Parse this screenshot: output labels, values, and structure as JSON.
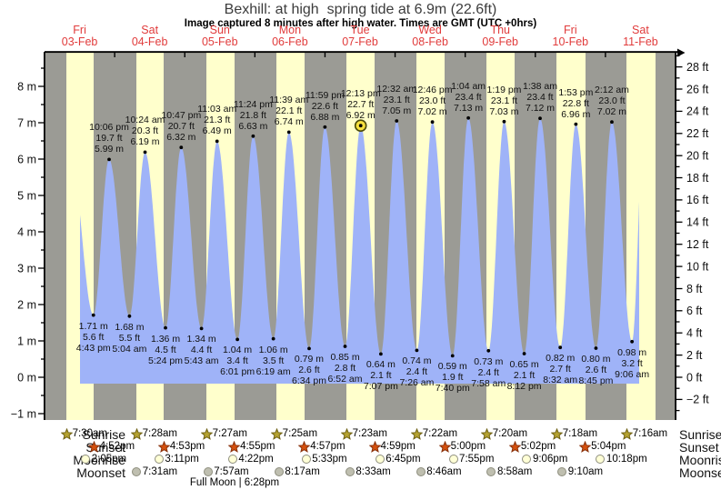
{
  "header": {
    "title": "Bexhill: at high  spring tide at 6.9m (22.6ft)",
    "subtitle": "Image captured 8 minutes after high water. Times are GMT (UTC +0hrs)"
  },
  "colors": {
    "night_band": "#9b9b95",
    "day_band": "#ffffcc",
    "tide_fill": "#9fb3f8",
    "day_label_red": "#e13b3b",
    "marker_yellow": "#f7e13e",
    "sunrise_star": "#b5a230",
    "sunset_star": "#d4500e",
    "moonrise_circle": "#ffffd6",
    "moonset_circle": "#bfbfb0"
  },
  "chart_data": {
    "type": "area",
    "title": "Bexhill: at high  spring tide at 6.9m (22.6ft)",
    "ylabel_left": "m",
    "ylabel_right": "ft",
    "y_left_ticks_m": [
      8,
      7,
      6,
      5,
      4,
      3,
      2,
      1,
      0,
      -1
    ],
    "y_right_ticks_ft": [
      28,
      26,
      24,
      22,
      20,
      18,
      16,
      14,
      12,
      10,
      8,
      6,
      4,
      2,
      0,
      -2
    ],
    "x_days": [
      {
        "name": "Fri",
        "date": "03-Feb"
      },
      {
        "name": "Sat",
        "date": "04-Feb"
      },
      {
        "name": "Sun",
        "date": "05-Feb"
      },
      {
        "name": "Mon",
        "date": "06-Feb"
      },
      {
        "name": "Tue",
        "date": "07-Feb"
      },
      {
        "name": "Wed",
        "date": "08-Feb"
      },
      {
        "name": "Thu",
        "date": "09-Feb"
      },
      {
        "name": "Fri",
        "date": "10-Feb"
      },
      {
        "name": "Sat",
        "date": "11-Feb"
      }
    ],
    "events": [
      {
        "kind": "low",
        "day": 0,
        "hour": 16.72,
        "time": "4:43 pm",
        "m": "1.71",
        "ft": "5.6"
      },
      {
        "kind": "high",
        "day": 0,
        "hour": 22.1,
        "time": "10:06 pm",
        "m": "5.99",
        "ft": "19.7"
      },
      {
        "kind": "low",
        "day": 1,
        "hour": 5.07,
        "time": "5:04 am",
        "m": "1.68",
        "ft": "5.5"
      },
      {
        "kind": "high",
        "day": 1,
        "hour": 10.4,
        "time": "10:24 am",
        "m": "6.19",
        "ft": "20.3"
      },
      {
        "kind": "low",
        "day": 1,
        "hour": 17.4,
        "time": "5:24 pm",
        "m": "1.36",
        "ft": "4.5"
      },
      {
        "kind": "high",
        "day": 1,
        "hour": 22.78,
        "time": "10:47 pm",
        "m": "6.32",
        "ft": "20.7"
      },
      {
        "kind": "low",
        "day": 2,
        "hour": 5.72,
        "time": "5:43 am",
        "m": "1.34",
        "ft": "4.4"
      },
      {
        "kind": "high",
        "day": 2,
        "hour": 11.05,
        "time": "11:03 am",
        "m": "6.49",
        "ft": "21.3"
      },
      {
        "kind": "low",
        "day": 2,
        "hour": 18.02,
        "time": "6:01 pm",
        "m": "1.04",
        "ft": "3.4"
      },
      {
        "kind": "high",
        "day": 2,
        "hour": 23.4,
        "time": "11:24 pm",
        "m": "6.63",
        "ft": "21.8"
      },
      {
        "kind": "low",
        "day": 3,
        "hour": 6.32,
        "time": "6:19 am",
        "m": "1.06",
        "ft": "3.5"
      },
      {
        "kind": "high",
        "day": 3,
        "hour": 11.65,
        "time": "11:39 am",
        "m": "6.74",
        "ft": "22.1"
      },
      {
        "kind": "low",
        "day": 3,
        "hour": 18.57,
        "time": "6:34 pm",
        "m": "0.79",
        "ft": "2.6"
      },
      {
        "kind": "high",
        "day": 3,
        "hour": 23.98,
        "time": "11:59 pm",
        "m": "6.88",
        "ft": "22.6"
      },
      {
        "kind": "low",
        "day": 4,
        "hour": 6.87,
        "time": "6:52 am",
        "m": "0.85",
        "ft": "2.8"
      },
      {
        "kind": "high",
        "day": 4,
        "hour": 12.22,
        "time": "12:13 pm",
        "m": "6.92",
        "ft": "22.7",
        "current": true
      },
      {
        "kind": "low",
        "day": 4,
        "hour": 19.12,
        "time": "7:07 pm",
        "m": "0.64",
        "ft": "2.1"
      },
      {
        "kind": "high",
        "day": 5,
        "hour": 0.53,
        "time": "12:32 am",
        "m": "7.05",
        "ft": "23.1"
      },
      {
        "kind": "low",
        "day": 5,
        "hour": 7.43,
        "time": "7:26 am",
        "m": "0.74",
        "ft": "2.4"
      },
      {
        "kind": "high",
        "day": 5,
        "hour": 12.77,
        "time": "12:46 pm",
        "m": "7.02",
        "ft": "23.0"
      },
      {
        "kind": "low",
        "day": 5,
        "hour": 19.67,
        "time": "7:40 pm",
        "m": "0.59",
        "ft": "1.9"
      },
      {
        "kind": "high",
        "day": 6,
        "hour": 1.07,
        "time": "1:04 am",
        "m": "7.13",
        "ft": "23.4"
      },
      {
        "kind": "low",
        "day": 6,
        "hour": 7.97,
        "time": "7:58 am",
        "m": "0.73",
        "ft": "2.4"
      },
      {
        "kind": "high",
        "day": 6,
        "hour": 13.32,
        "time": "1:19 pm",
        "m": "7.03",
        "ft": "23.1"
      },
      {
        "kind": "low",
        "day": 6,
        "hour": 20.2,
        "time": "8:12 pm",
        "m": "0.65",
        "ft": "2.1"
      },
      {
        "kind": "high",
        "day": 7,
        "hour": 1.63,
        "time": "1:38 am",
        "m": "7.12",
        "ft": "23.4"
      },
      {
        "kind": "low",
        "day": 7,
        "hour": 8.53,
        "time": "8:32 am",
        "m": "0.82",
        "ft": "2.7"
      },
      {
        "kind": "high",
        "day": 7,
        "hour": 13.88,
        "time": "1:53 pm",
        "m": "6.96",
        "ft": "22.8"
      },
      {
        "kind": "low",
        "day": 7,
        "hour": 20.75,
        "time": "8:45 pm",
        "m": "0.80",
        "ft": "2.6"
      },
      {
        "kind": "high",
        "day": 8,
        "hour": 2.2,
        "time": "2:12 am",
        "m": "7.02",
        "ft": "23.0"
      },
      {
        "kind": "low",
        "day": 8,
        "hour": 9.1,
        "time": "9:06 am",
        "m": "0.98",
        "ft": "3.2"
      }
    ],
    "current_marker": {
      "time": "12:13 pm",
      "height_m": "6.92",
      "height_ft": "22.7"
    }
  },
  "astro": {
    "rows": [
      {
        "id": "sunrise",
        "label": "Sunrise",
        "icon": "sunrise-star",
        "entries": [
          {
            "day": 0,
            "hour": 7.5,
            "time": "7:30am"
          },
          {
            "day": 1,
            "hour": 7.47,
            "time": "7:28am"
          },
          {
            "day": 2,
            "hour": 7.45,
            "time": "7:27am"
          },
          {
            "day": 3,
            "hour": 7.42,
            "time": "7:25am"
          },
          {
            "day": 4,
            "hour": 7.38,
            "time": "7:23am"
          },
          {
            "day": 5,
            "hour": 7.37,
            "time": "7:22am"
          },
          {
            "day": 6,
            "hour": 7.33,
            "time": "7:20am"
          },
          {
            "day": 7,
            "hour": 7.3,
            "time": "7:18am"
          },
          {
            "day": 8,
            "hour": 7.27,
            "time": "7:16am"
          }
        ]
      },
      {
        "id": "sunset",
        "label": "Sunset",
        "icon": "sunset-star",
        "entries": [
          {
            "day": 0,
            "hour": 16.87,
            "time": "4:52pm"
          },
          {
            "day": 1,
            "hour": 16.88,
            "time": "4:53pm"
          },
          {
            "day": 2,
            "hour": 16.92,
            "time": "4:55pm"
          },
          {
            "day": 3,
            "hour": 16.95,
            "time": "4:57pm"
          },
          {
            "day": 4,
            "hour": 16.98,
            "time": "4:59pm"
          },
          {
            "day": 5,
            "hour": 17.0,
            "time": "5:00pm"
          },
          {
            "day": 6,
            "hour": 17.03,
            "time": "5:02pm"
          },
          {
            "day": 7,
            "hour": 17.07,
            "time": "5:04pm"
          }
        ]
      },
      {
        "id": "moonrise",
        "label": "Moonrise",
        "icon": "moonrise-circle",
        "entries": [
          {
            "day": 0,
            "hour": 14.08,
            "time": "2:05pm"
          },
          {
            "day": 1,
            "hour": 15.18,
            "time": "3:11pm"
          },
          {
            "day": 2,
            "hour": 16.37,
            "time": "4:22pm"
          },
          {
            "day": 3,
            "hour": 17.55,
            "time": "5:33pm"
          },
          {
            "day": 4,
            "hour": 18.75,
            "time": "6:45pm"
          },
          {
            "day": 5,
            "hour": 19.92,
            "time": "7:55pm"
          },
          {
            "day": 6,
            "hour": 21.1,
            "time": "9:06pm"
          },
          {
            "day": 7,
            "hour": 22.3,
            "time": "10:18pm"
          }
        ]
      },
      {
        "id": "moonset",
        "label": "Moonset",
        "icon": "moonset-circle",
        "entries": [
          {
            "day": 1,
            "hour": 7.52,
            "time": "7:31am"
          },
          {
            "day": 2,
            "hour": 7.95,
            "time": "7:57am"
          },
          {
            "day": 3,
            "hour": 8.28,
            "time": "8:17am"
          },
          {
            "day": 4,
            "hour": 8.55,
            "time": "8:33am"
          },
          {
            "day": 5,
            "hour": 8.77,
            "time": "8:46am"
          },
          {
            "day": 6,
            "hour": 8.97,
            "time": "8:58am"
          },
          {
            "day": 7,
            "hour": 9.17,
            "time": "9:10am"
          }
        ]
      }
    ],
    "footer": "Full Moon | 6:28pm"
  }
}
